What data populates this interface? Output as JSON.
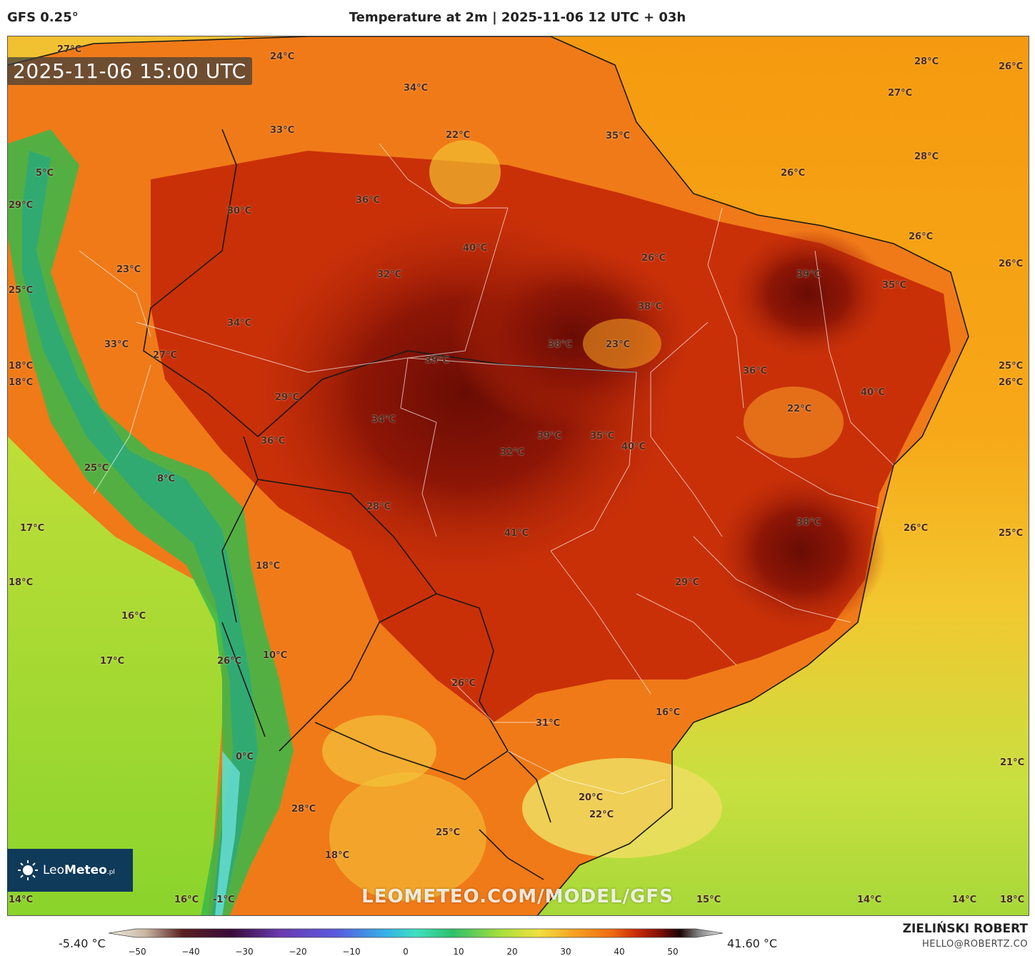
{
  "header": {
    "model": "GFS 0.25°",
    "title": "Temperature at 2m | 2025-11-06 12 UTC + 03h"
  },
  "map": {
    "timestamp": "2025-11-06 15:00 UTC",
    "watermark": "LEOMETEO.COM/MODEL/GFS",
    "labels": [
      "27°C",
      "24°C",
      "34°C",
      "33°C",
      "22°C",
      "35°C",
      "28°C",
      "26°C",
      "27°C",
      "28°C",
      "26°C",
      "5°C",
      "29°C",
      "30°C",
      "36°C",
      "26°C",
      "40°C",
      "32°C",
      "23°C",
      "26°C",
      "39°C",
      "35°C",
      "25°C",
      "38°C",
      "26°C",
      "34°C",
      "38°C",
      "23°C",
      "33°C",
      "27°C",
      "39°C",
      "36°C",
      "25°C",
      "18°C",
      "18°C",
      "26°C",
      "29°C",
      "40°C",
      "22°C",
      "34°C",
      "36°C",
      "39°C",
      "35°C",
      "32°C",
      "40°C",
      "25°C",
      "8°C",
      "28°C",
      "38°C",
      "17°C",
      "41°C",
      "26°C",
      "25°C",
      "18°C",
      "29°C",
      "18°C",
      "16°C",
      "10°C",
      "17°C",
      "26°C",
      "26°C",
      "16°C",
      "31°C",
      "0°C",
      "21°C",
      "20°C",
      "28°C",
      "22°C",
      "25°C",
      "18°C",
      "14°C",
      "16°C",
      "-1°C",
      "15°C",
      "14°C",
      "14°C",
      "18°C"
    ]
  },
  "logo": {
    "brand_light": "Leo",
    "brand_bold": "Meteo",
    "suffix": ".pl"
  },
  "legend": {
    "min": "-5.40 °C",
    "max": "41.60 °C",
    "ticks": [
      "−50",
      "−40",
      "−30",
      "−20",
      "−10",
      "0",
      "10",
      "20",
      "30",
      "40",
      "50"
    ],
    "colors": [
      "#f0ece4",
      "#c9b7a3",
      "#8a5a45",
      "#4a1a20",
      "#3a0a3a",
      "#5a1a7a",
      "#6a3ab0",
      "#5a5ae0",
      "#3a7ae8",
      "#35b0e8",
      "#40e0c0",
      "#2ec06a",
      "#5ad03a",
      "#a8e03a",
      "#f0e040",
      "#f5a020",
      "#ee6a10",
      "#c92a08",
      "#7a0e04",
      "#2a0404",
      "#505050",
      "#a0a0a0",
      "#e8e8e8"
    ]
  },
  "credits": {
    "author": "ZIELIŃSKI ROBERT",
    "email": "HELLO@ROBERTZ.CO"
  }
}
